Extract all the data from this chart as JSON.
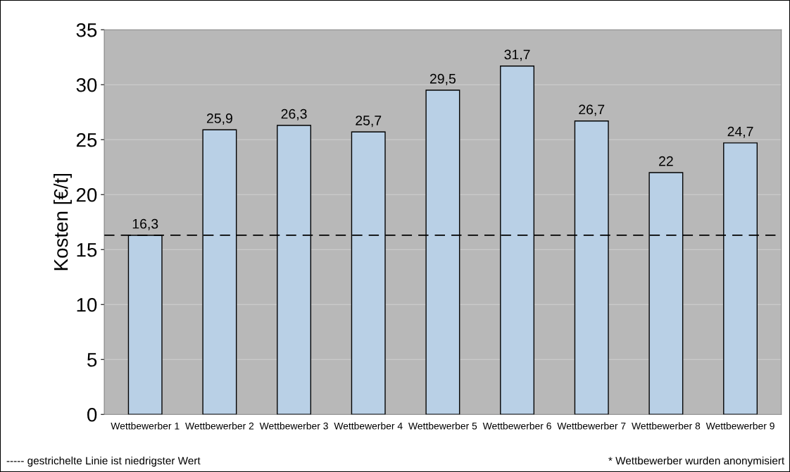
{
  "chart_data": {
    "type": "bar",
    "ylabel": "Kosten [€/t]",
    "categories": [
      "Wettbewerber 1",
      "Wettbewerber 2",
      "Wettbewerber 3",
      "Wettbewerber 4",
      "Wettbewerber 5",
      "Wettbewerber 6",
      "Wettbewerber 7",
      "Wettbewerber 8",
      "Wettbewerber 9"
    ],
    "values": [
      16.3,
      25.9,
      26.3,
      25.7,
      29.5,
      31.7,
      26.7,
      22,
      24.7
    ],
    "value_labels": [
      "16,3",
      "25,9",
      "26,3",
      "25,7",
      "29,5",
      "31,7",
      "26,7",
      "22",
      "24,7"
    ],
    "color": "#b9d0e6",
    "ylim": [
      0,
      35
    ],
    "yticks": [
      0,
      5,
      10,
      15,
      20,
      25,
      30,
      35
    ],
    "grid": "y",
    "ref_lines": [
      {
        "axis": "y",
        "value": 16.3,
        "color": "#000000",
        "line_style": "dashed"
      }
    ],
    "annotations": [
      "----- gestrichelte Linie ist niedrigster Wert",
      "* Wettbewerber wurden anonymisiert"
    ]
  }
}
